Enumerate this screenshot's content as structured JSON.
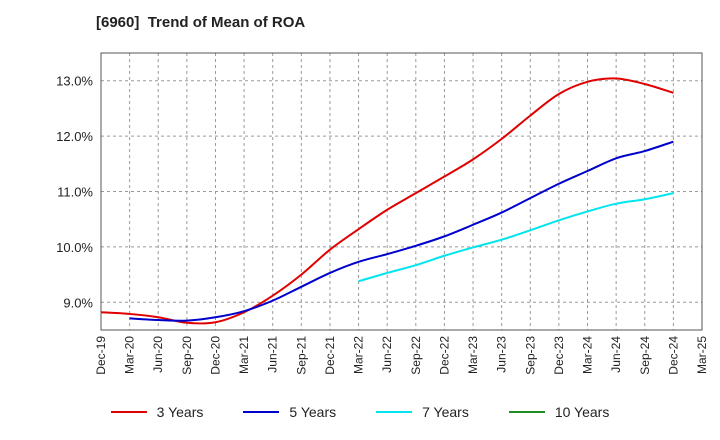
{
  "chart_data": {
    "type": "line",
    "title": "[6960]  Trend of Mean of ROA",
    "xlabel": "",
    "ylabel": "",
    "x_ticks": [
      "Dec-19",
      "Mar-20",
      "Jun-20",
      "Sep-20",
      "Dec-20",
      "Mar-21",
      "Jun-21",
      "Sep-21",
      "Dec-21",
      "Mar-22",
      "Jun-22",
      "Sep-22",
      "Dec-22",
      "Mar-23",
      "Jun-23",
      "Sep-23",
      "Dec-23",
      "Mar-24",
      "Jun-24",
      "Sep-24",
      "Dec-24",
      "Mar-25"
    ],
    "ylim": [
      8.5,
      13.5
    ],
    "y_ticks": [
      9.0,
      10.0,
      11.0,
      12.0,
      13.0
    ],
    "y_tick_labels": [
      "9.0%",
      "10.0%",
      "11.0%",
      "12.0%",
      "13.0%"
    ],
    "grid": true,
    "legend_position": "bottom",
    "series": [
      {
        "name": "3 Years",
        "color": "#e00000",
        "x": [
          "Dec-19",
          "Mar-20",
          "Jun-20",
          "Sep-20",
          "Dec-20",
          "Mar-21",
          "Jun-21",
          "Sep-21",
          "Dec-21",
          "Mar-22",
          "Jun-22",
          "Sep-22",
          "Dec-22",
          "Mar-23",
          "Jun-23",
          "Sep-23",
          "Dec-23",
          "Mar-24",
          "Jun-24",
          "Sep-24",
          "Dec-24"
        ],
        "values": [
          8.82,
          8.79,
          8.73,
          8.63,
          8.64,
          8.82,
          9.12,
          9.5,
          9.95,
          10.32,
          10.67,
          10.97,
          11.27,
          11.58,
          11.95,
          12.37,
          12.76,
          12.98,
          13.04,
          12.94,
          12.78
        ]
      },
      {
        "name": "5 Years",
        "color": "#0000cc",
        "x": [
          "Mar-20",
          "Jun-20",
          "Sep-20",
          "Dec-20",
          "Mar-21",
          "Jun-21",
          "Sep-21",
          "Dec-21",
          "Mar-22",
          "Jun-22",
          "Sep-22",
          "Dec-22",
          "Mar-23",
          "Jun-23",
          "Sep-23",
          "Dec-23",
          "Mar-24",
          "Jun-24",
          "Sep-24",
          "Dec-24"
        ],
        "values": [
          8.71,
          8.68,
          8.67,
          8.73,
          8.84,
          9.03,
          9.28,
          9.53,
          9.73,
          9.87,
          10.02,
          10.19,
          10.4,
          10.62,
          10.88,
          11.14,
          11.37,
          11.6,
          11.73,
          11.9
        ]
      },
      {
        "name": "7 Years",
        "color": "#00e5ee",
        "x": [
          "Mar-22",
          "Jun-22",
          "Sep-22",
          "Dec-22",
          "Mar-23",
          "Jun-23",
          "Sep-23",
          "Dec-23",
          "Mar-24",
          "Jun-24",
          "Sep-24",
          "Dec-24"
        ],
        "values": [
          9.38,
          9.53,
          9.67,
          9.84,
          9.99,
          10.13,
          10.3,
          10.48,
          10.64,
          10.78,
          10.86,
          10.97
        ]
      },
      {
        "name": "10 Years",
        "color": "#228b22",
        "x": [],
        "values": []
      }
    ]
  }
}
